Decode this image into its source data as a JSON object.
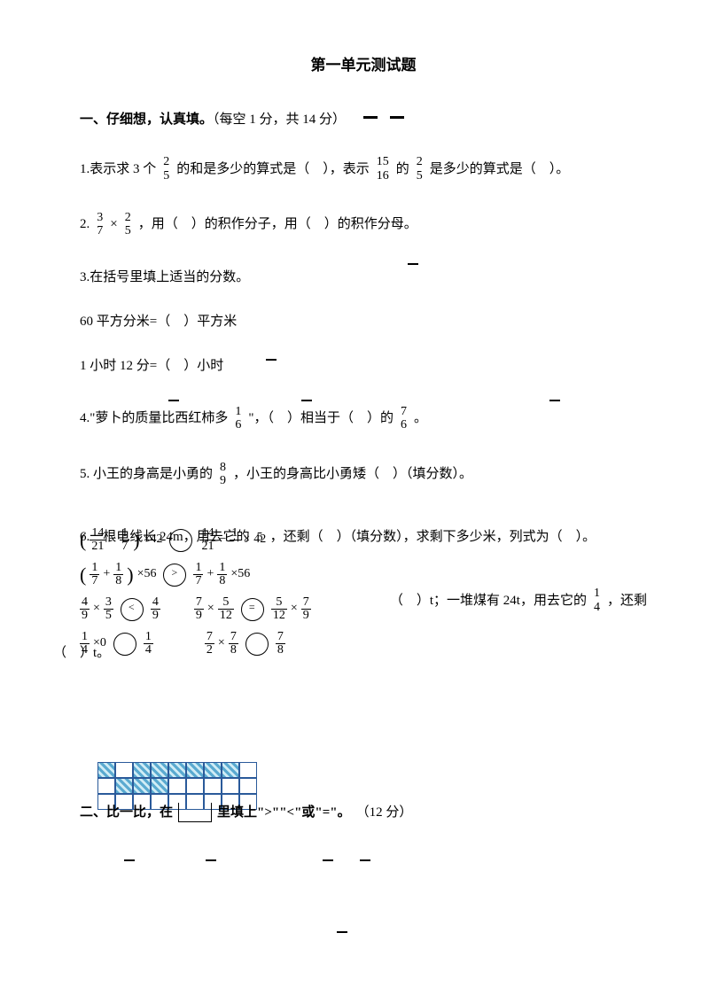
{
  "colors": {
    "text": "#000000",
    "bg": "#ffffff",
    "grid_border": "#2a5a9a",
    "grid_fill_a": "#5aaad0",
    "grid_fill_b": "#d0ecf5"
  },
  "title": "第一单元测试题",
  "section1": {
    "heading": "一、仔细想，认真填。",
    "points": "（每空 1 分，共 14 分）"
  },
  "q1": {
    "pre": "1.表示求 3 个",
    "f1": {
      "n": "2",
      "d": "5"
    },
    "mid1": " 的和是多少的算式是（　），表示",
    "f2": {
      "n": "15",
      "d": "16"
    },
    "mid2": " 的",
    "f3": {
      "n": "2",
      "d": "5"
    },
    "tail": " 是多少的算式是（　）。"
  },
  "q2": {
    "label": "2. ",
    "f1": {
      "n": "3",
      "d": "7"
    },
    "times": "×",
    "f2": {
      "n": "2",
      "d": "5"
    },
    "tail": " ，用（　）的积作分子，用（　）的积作分母。"
  },
  "q3": {
    "head": "3.在括号里填上适当的分数。",
    "line1": "60 平方分米=（　）平方米",
    "line2": "1 小时 12 分=（　）小时"
  },
  "q4": {
    "pre": "4.\"萝卜的质量比西红柿多",
    "f1": {
      "n": "1",
      "d": "6"
    },
    "mid": " \"，（　）相当于（　）的",
    "f2": {
      "n": "7",
      "d": "6"
    },
    "tail": " 。"
  },
  "q5": {
    "pre": "5. 小王的身高是小勇的",
    "f": {
      "n": "8",
      "d": "9"
    },
    "tail": " ，小王的身高比小勇矮（　）（填分数）。"
  },
  "q6": {
    "pre": "6.一根电线长 24m，用去它的",
    "f": {
      "n": "5",
      "d": ""
    },
    "mid": "，还剩（　）（填分数），求剩下多少米，列式为（　）。"
  },
  "q7": {
    "tail_a": "（　）t；一堆煤有 24t，用去它的",
    "f": {
      "n": "1",
      "d": "4"
    },
    "tail_b": " ，还剩",
    "q7b": "（　）t。"
  },
  "section2": {
    "pre": "二、比一比，在",
    "post": " 里填上\">\"\"<\"或\"=\"。",
    "points": "（12 分）"
  },
  "overlay": {
    "r1a": {
      "n": "14",
      "d": "21"
    },
    "r1b": {
      "n": "1",
      "d": "7"
    },
    "r1_times42": "×42",
    "r1c": {
      "n": "14",
      "d": "21"
    },
    "r1d": {
      "n": "1",
      "d": ""
    },
    "r1e_42": "42",
    "r2a": {
      "n": "1",
      "d": "7"
    },
    "r2b": {
      "n": "1",
      "d": "8"
    },
    "r2_times56": "×56",
    "r2c": {
      "n": "1",
      "d": "7"
    },
    "r2d": {
      "n": "1",
      "d": "8"
    },
    "r2_x56b": "×56",
    "r3a": {
      "n": "4",
      "d": "9"
    },
    "r3b": {
      "n": "3",
      "d": "5"
    },
    "r3_lt": "<",
    "r3c": {
      "n": "4",
      "d": "9"
    },
    "r3d": {
      "n": "7",
      "d": "9"
    },
    "r3e": {
      "n": "5",
      "d": "12"
    },
    "r3_eq": "=",
    "r3f": {
      "n": "5",
      "d": "12"
    },
    "r3g": {
      "n": "7",
      "d": "9"
    },
    "r4a": {
      "n": "1",
      "d": "4"
    },
    "r4_x0": "×0",
    "r4b": {
      "n": "1",
      "d": "4"
    },
    "r4c": {
      "n": "7",
      "d": "2"
    },
    "r4d": {
      "n": "7",
      "d": "8"
    },
    "r4e": {
      "n": "7",
      "d": "8"
    }
  },
  "grid": {
    "rows": 3,
    "cols": 9,
    "pattern": [
      [
        1,
        0,
        1,
        1,
        1,
        1,
        1,
        1,
        0
      ],
      [
        0,
        1,
        1,
        1,
        0,
        0,
        0,
        0,
        0
      ],
      [
        0,
        0,
        0,
        0,
        0,
        0,
        0,
        0,
        0
      ]
    ]
  }
}
